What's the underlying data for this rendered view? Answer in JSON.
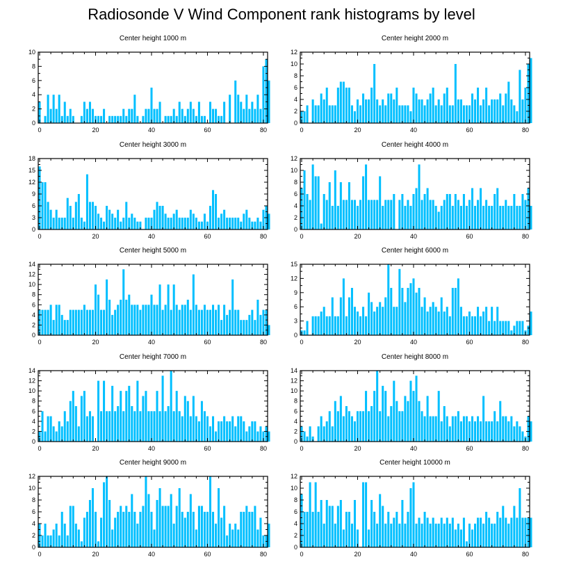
{
  "title": "Radiosonde V Wind Component rank histograms by level",
  "colors": {
    "bar": "#00BFFF",
    "axis": "#000000"
  },
  "chart_data": [
    {
      "type": "bar",
      "title": "Center height 1000 m",
      "xlabel": "",
      "ylabel": "",
      "ylim": [
        0,
        10
      ],
      "yticks": [
        0,
        2,
        4,
        6,
        8,
        10
      ],
      "xticks": [
        0,
        20,
        40,
        60,
        80
      ],
      "xlim": [
        -0.5,
        81.5
      ],
      "grid": false,
      "values": [
        3,
        0,
        1,
        4,
        2,
        4,
        2,
        4,
        1,
        3,
        1,
        2,
        1,
        0,
        0,
        1,
        3,
        2,
        3,
        2,
        1,
        1,
        1,
        2,
        0,
        1,
        1,
        1,
        1,
        1,
        2,
        1,
        2,
        2,
        4,
        1,
        0,
        1,
        2,
        2,
        5,
        2,
        2,
        3,
        0,
        1,
        1,
        1,
        2,
        1,
        3,
        2,
        1,
        2,
        3,
        2,
        1,
        3,
        1,
        1,
        0,
        3,
        2,
        2,
        1,
        1,
        3,
        0,
        4,
        0,
        6,
        4,
        3,
        2,
        4,
        2,
        3,
        2,
        4,
        2,
        8,
        9,
        6
      ]
    },
    {
      "type": "bar",
      "title": "Center height 2000 m",
      "xlabel": "",
      "ylabel": "",
      "ylim": [
        0,
        12
      ],
      "yticks": [
        0,
        2,
        4,
        6,
        8,
        10,
        12
      ],
      "xticks": [
        0,
        20,
        40,
        60,
        80
      ],
      "xlim": [
        -0.5,
        81.5
      ],
      "grid": false,
      "values": [
        2,
        2,
        3,
        0,
        4,
        3,
        3,
        5,
        4,
        6,
        3,
        3,
        3,
        6,
        7,
        7,
        6,
        6,
        3,
        2,
        4,
        3,
        5,
        4,
        4,
        6,
        10,
        4,
        3,
        4,
        3,
        5,
        5,
        4,
        6,
        3,
        3,
        3,
        3,
        2,
        6,
        5,
        4,
        4,
        3,
        4,
        5,
        6,
        3,
        4,
        3,
        5,
        6,
        3,
        3,
        10,
        4,
        4,
        3,
        3,
        3,
        5,
        4,
        6,
        3,
        4,
        6,
        3,
        4,
        4,
        4,
        5,
        3,
        5,
        7,
        4,
        3,
        2,
        9,
        4,
        6,
        10,
        11
      ]
    },
    {
      "type": "bar",
      "title": "Center height 3000 m",
      "xlabel": "",
      "ylabel": "",
      "ylim": [
        0,
        18
      ],
      "yticks": [
        0,
        3,
        6,
        9,
        12,
        15,
        18
      ],
      "xticks": [
        0,
        20,
        40,
        60,
        80
      ],
      "xlim": [
        -0.5,
        81.5
      ],
      "grid": false,
      "values": [
        16,
        12,
        12,
        7,
        5,
        3,
        5,
        3,
        3,
        3,
        8,
        6,
        3,
        7,
        9,
        3,
        2,
        14,
        7,
        7,
        6,
        4,
        3,
        2,
        6,
        5,
        4,
        3,
        5,
        2,
        3,
        7,
        3,
        4,
        3,
        2,
        2,
        0,
        3,
        3,
        3,
        5,
        7,
        6,
        6,
        4,
        3,
        3,
        4,
        5,
        3,
        3,
        3,
        3,
        5,
        4,
        3,
        2,
        2,
        4,
        2,
        6,
        10,
        9,
        3,
        4,
        5,
        3,
        3,
        3,
        3,
        3,
        2,
        4,
        5,
        3,
        2,
        2,
        3,
        2,
        5,
        6,
        4
      ]
    },
    {
      "type": "bar",
      "title": "Center height 4000 m",
      "xlabel": "",
      "ylabel": "",
      "ylim": [
        0,
        12
      ],
      "yticks": [
        0,
        2,
        4,
        6,
        8,
        10,
        12
      ],
      "xticks": [
        0,
        20,
        40,
        60,
        80
      ],
      "xlim": [
        -0.5,
        81.5
      ],
      "grid": false,
      "values": [
        7,
        10,
        6,
        5,
        11,
        9,
        9,
        1,
        6,
        5,
        8,
        4,
        10,
        4,
        8,
        5,
        5,
        8,
        5,
        5,
        4,
        5,
        9,
        11,
        5,
        5,
        5,
        5,
        9,
        4,
        5,
        5,
        5,
        6,
        0,
        5,
        6,
        4,
        5,
        4,
        6,
        7,
        11,
        5,
        6,
        7,
        5,
        5,
        4,
        3,
        4,
        5,
        6,
        6,
        4,
        6,
        5,
        4,
        6,
        4,
        5,
        7,
        4,
        5,
        7,
        4,
        5,
        4,
        4,
        6,
        7,
        4,
        4,
        5,
        4,
        4,
        6,
        4,
        4,
        6,
        5,
        7,
        4
      ]
    },
    {
      "type": "bar",
      "title": "Center height 5000 m",
      "xlabel": "",
      "ylabel": "",
      "ylim": [
        0,
        14
      ],
      "yticks": [
        0,
        2,
        4,
        6,
        8,
        10,
        12,
        14
      ],
      "xticks": [
        0,
        20,
        40,
        60,
        80
      ],
      "xlim": [
        -0.5,
        81.5
      ],
      "grid": false,
      "values": [
        5,
        5,
        5,
        5,
        6,
        3,
        6,
        6,
        4,
        3,
        3,
        5,
        5,
        5,
        5,
        5,
        6,
        5,
        5,
        5,
        10,
        8,
        5,
        5,
        11,
        7,
        4,
        5,
        6,
        7,
        13,
        7,
        8,
        6,
        6,
        6,
        5,
        6,
        6,
        6,
        8,
        6,
        6,
        10,
        5,
        6,
        10,
        5,
        10,
        6,
        5,
        6,
        6,
        7,
        5,
        12,
        6,
        5,
        5,
        6,
        5,
        5,
        6,
        5,
        6,
        3,
        6,
        4,
        5,
        11,
        5,
        5,
        3,
        3,
        3,
        4,
        5,
        3,
        7,
        4,
        5,
        5,
        2
      ]
    },
    {
      "type": "bar",
      "title": "Center height 6000 m",
      "xlabel": "",
      "ylabel": "",
      "ylim": [
        0,
        15
      ],
      "yticks": [
        0,
        3,
        6,
        9,
        12,
        15
      ],
      "xticks": [
        0,
        20,
        40,
        60,
        80
      ],
      "xlim": [
        -0.5,
        81.5
      ],
      "grid": false,
      "values": [
        1,
        1,
        3,
        0,
        4,
        4,
        4,
        5,
        6,
        4,
        4,
        8,
        4,
        4,
        8,
        12,
        4,
        8,
        10,
        6,
        5,
        4,
        6,
        4,
        9,
        7,
        5,
        6,
        7,
        6,
        8,
        15,
        10,
        6,
        6,
        14,
        10,
        7,
        10,
        11,
        12,
        9,
        10,
        6,
        8,
        5,
        6,
        7,
        6,
        5,
        8,
        5,
        6,
        4,
        10,
        10,
        12,
        6,
        4,
        4,
        5,
        4,
        4,
        6,
        4,
        5,
        6,
        3,
        6,
        3,
        6,
        3,
        3,
        3,
        3,
        1,
        2,
        3,
        3,
        3,
        1,
        2,
        5
      ]
    },
    {
      "type": "bar",
      "title": "Center height 7000 m",
      "xlabel": "",
      "ylabel": "",
      "ylim": [
        0,
        14
      ],
      "yticks": [
        0,
        2,
        4,
        6,
        8,
        10,
        12,
        14
      ],
      "xticks": [
        0,
        20,
        40,
        60,
        80
      ],
      "xlim": [
        -0.5,
        81.5
      ],
      "grid": false,
      "values": [
        2,
        6,
        2,
        5,
        5,
        3,
        2,
        4,
        3,
        6,
        4,
        8,
        10,
        7,
        3,
        9,
        10,
        5,
        6,
        5,
        0,
        12,
        6,
        12,
        6,
        6,
        11,
        6,
        7,
        10,
        6,
        10,
        11,
        7,
        6,
        12,
        6,
        9,
        10,
        6,
        6,
        6,
        10,
        6,
        13,
        6,
        7,
        14,
        6,
        10,
        6,
        5,
        9,
        8,
        5,
        9,
        5,
        4,
        8,
        6,
        5,
        3,
        5,
        2,
        4,
        4,
        5,
        4,
        4,
        5,
        3,
        5,
        5,
        4,
        2,
        3,
        4,
        4,
        2,
        3,
        2,
        3,
        2
      ]
    },
    {
      "type": "bar",
      "title": "Center height 8000 m",
      "xlabel": "",
      "ylabel": "",
      "ylim": [
        0,
        14
      ],
      "yticks": [
        0,
        2,
        4,
        6,
        8,
        10,
        12,
        14
      ],
      "xticks": [
        0,
        20,
        40,
        60,
        80
      ],
      "xlim": [
        -0.5,
        81.5
      ],
      "grid": false,
      "values": [
        3,
        2,
        1,
        3,
        1,
        0,
        3,
        5,
        3,
        4,
        6,
        3,
        8,
        6,
        9,
        5,
        7,
        6,
        5,
        4,
        6,
        6,
        6,
        10,
        6,
        7,
        10,
        14,
        6,
        11,
        10,
        5,
        7,
        12,
        8,
        6,
        6,
        9,
        8,
        12,
        10,
        13,
        8,
        6,
        5,
        9,
        5,
        5,
        5,
        10,
        4,
        7,
        5,
        3,
        5,
        5,
        6,
        4,
        5,
        5,
        4,
        5,
        4,
        5,
        4,
        9,
        4,
        4,
        4,
        6,
        4,
        8,
        5,
        5,
        4,
        5,
        3,
        4,
        3,
        2,
        1,
        5,
        4
      ]
    },
    {
      "type": "bar",
      "title": "Center height 9000 m",
      "xlabel": "",
      "ylabel": "",
      "ylim": [
        0,
        12
      ],
      "yticks": [
        0,
        2,
        4,
        6,
        8,
        10,
        12
      ],
      "xticks": [
        0,
        20,
        40,
        60,
        80
      ],
      "xlim": [
        -0.5,
        81.5
      ],
      "grid": false,
      "values": [
        4,
        2,
        4,
        2,
        2,
        3,
        4,
        2,
        6,
        4,
        2,
        7,
        7,
        4,
        3,
        1,
        5,
        6,
        8,
        10,
        6,
        1,
        5,
        11,
        12,
        8,
        3,
        5,
        6,
        7,
        6,
        7,
        6,
        9,
        6,
        4,
        6,
        7,
        12,
        9,
        6,
        3,
        8,
        10,
        7,
        7,
        7,
        9,
        4,
        7,
        10,
        6,
        5,
        6,
        9,
        6,
        3,
        7,
        7,
        6,
        6,
        12,
        6,
        4,
        10,
        5,
        7,
        2,
        4,
        3,
        4,
        3,
        6,
        6,
        7,
        6,
        6,
        7,
        3,
        5,
        2,
        2,
        4
      ]
    },
    {
      "type": "bar",
      "title": "Center height 10000 m",
      "xlabel": "",
      "ylabel": "",
      "ylim": [
        0,
        12
      ],
      "yticks": [
        0,
        2,
        4,
        6,
        8,
        10,
        12
      ],
      "xticks": [
        0,
        20,
        40,
        60,
        80
      ],
      "xlim": [
        -0.5,
        81.5
      ],
      "grid": false,
      "values": [
        9,
        6,
        6,
        11,
        6,
        11,
        6,
        8,
        4,
        8,
        7,
        7,
        4,
        7,
        8,
        3,
        6,
        6,
        4,
        8,
        3,
        0,
        11,
        11,
        3,
        8,
        6,
        4,
        9,
        7,
        4,
        6,
        4,
        5,
        6,
        4,
        8,
        4,
        6,
        10,
        11,
        4,
        5,
        4,
        6,
        5,
        4,
        5,
        4,
        4,
        5,
        4,
        5,
        4,
        5,
        3,
        4,
        3,
        5,
        1,
        4,
        3,
        4,
        5,
        5,
        4,
        6,
        5,
        4,
        4,
        6,
        5,
        7,
        5,
        4,
        5,
        7,
        5,
        10,
        5,
        5,
        5,
        5
      ]
    }
  ]
}
